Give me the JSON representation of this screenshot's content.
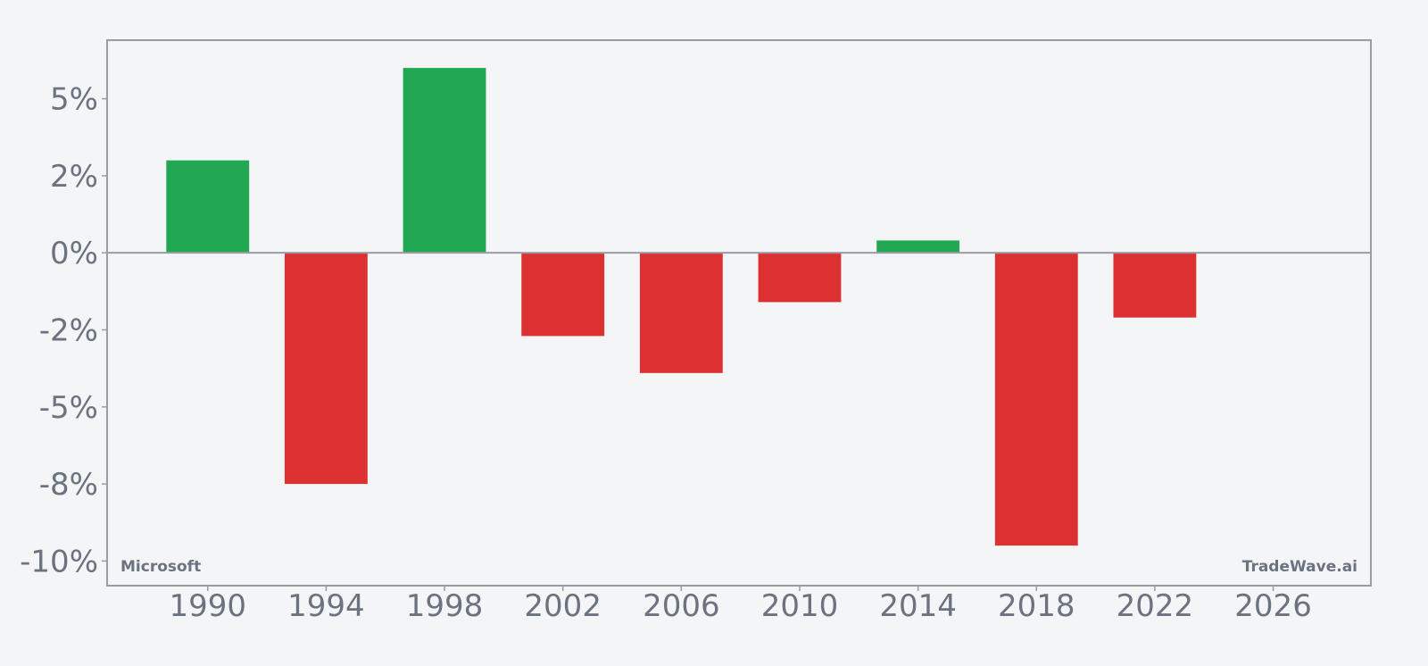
{
  "chart_data": {
    "type": "bar",
    "title": "",
    "xlabel": "",
    "ylabel": "",
    "categories": [
      "1990",
      "1994",
      "1998",
      "2002",
      "2006",
      "2010",
      "2014",
      "2018",
      "2022"
    ],
    "x": [
      1990,
      1994,
      1998,
      2002,
      2006,
      2010,
      2014,
      2018,
      2022
    ],
    "values": [
      3.0,
      -7.5,
      6.0,
      -2.7,
      -3.9,
      -1.6,
      0.4,
      -9.5,
      -2.1
    ],
    "units": "%",
    "ylim": [
      -10.8,
      6.9
    ],
    "xlim": [
      1986.6,
      2029.3
    ],
    "yticks": [
      5,
      2.5,
      0,
      -2.5,
      -5,
      -7.5,
      -10
    ],
    "ytick_labels": [
      "5%",
      "2%",
      "0%",
      "-2%",
      "-5%",
      "-8%",
      "-10%"
    ],
    "xticks": [
      1990,
      1994,
      1998,
      2002,
      2006,
      2010,
      2014,
      2018,
      2022,
      2026
    ],
    "xtick_labels": [
      "1990",
      "1994",
      "1998",
      "2002",
      "2006",
      "2010",
      "2014",
      "2018",
      "2022",
      "2026"
    ],
    "grid": false,
    "legend": null,
    "bar_width_years": 2.8,
    "colors": {
      "positive": "#22a852",
      "negative": "#dc3131"
    },
    "annotations": [
      "Microsoft",
      "TradeWave.ai"
    ]
  },
  "watermarks": {
    "left": "Microsoft",
    "right": "TradeWave.ai"
  },
  "style": {
    "background": "#f4f5f7",
    "axis": "#9a9ca5",
    "text": "#6b7280"
  }
}
